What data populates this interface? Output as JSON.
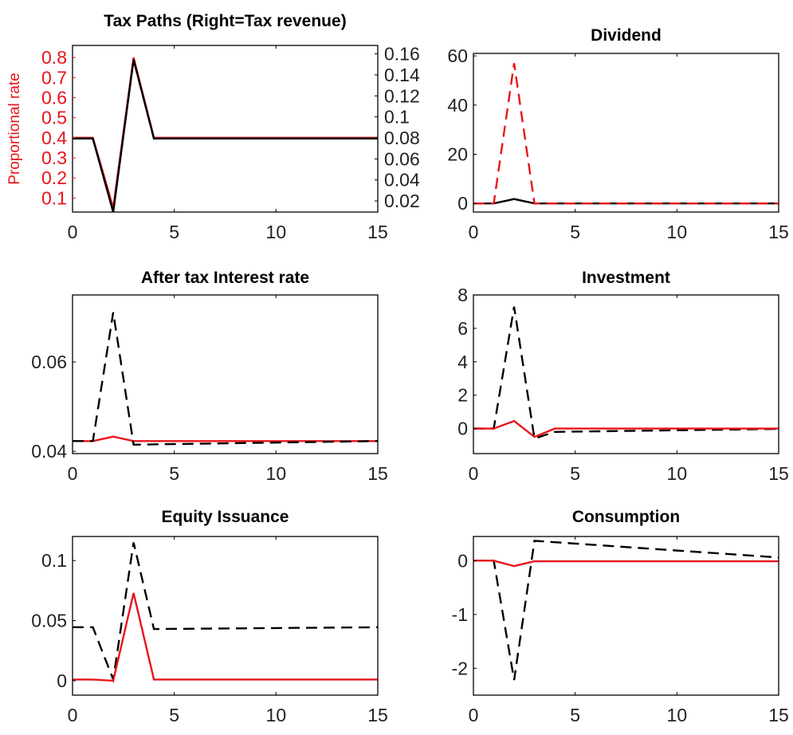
{
  "colors": {
    "red": "#e8141c",
    "black": "#000000",
    "axis": "#000000",
    "tick_text": "#222222"
  },
  "chart_data": [
    {
      "type": "line",
      "title": "Tax Paths (Right=Tax revenue)",
      "xlim": [
        0,
        15
      ],
      "xticks": [
        0,
        5,
        10,
        15
      ],
      "ylim": [
        0.03,
        0.86
      ],
      "yticks": [
        0.1,
        0.2,
        0.3,
        0.4,
        0.5,
        0.6,
        0.7,
        0.8
      ],
      "ytick_labels": [
        "0.1",
        "0.2",
        "0.3",
        "0.4",
        "0.5",
        "0.6",
        "0.7",
        "0.8"
      ],
      "ylabel": "Proportional rate",
      "ylabel_color": "#e8141c",
      "y_tick_color": "#e8141c",
      "y2lim": [
        0.0094,
        0.168
      ],
      "y2ticks": [
        0.02,
        0.04,
        0.06,
        0.08,
        0.1,
        0.12,
        0.14,
        0.16
      ],
      "y2tick_labels": [
        "0.02",
        "0.04",
        "0.06",
        "0.08",
        "0.1",
        "0.12",
        "0.14",
        "0.16"
      ],
      "grid": false,
      "series": [
        {
          "axis": "right",
          "style": "dashed",
          "color": "#000000",
          "x": [
            0,
            1,
            2,
            3,
            4,
            15
          ],
          "y": [
            0.0794,
            0.0794,
            0.0132,
            0.1546,
            0.0794,
            0.0794
          ]
        },
        {
          "axis": "left",
          "style": "solid",
          "color": "#e8141c",
          "x": [
            0,
            1,
            2,
            3,
            4,
            15
          ],
          "y": [
            0.4,
            0.4,
            0.05,
            0.8,
            0.4,
            0.4
          ]
        },
        {
          "axis": "right",
          "style": "solid",
          "color": "#000000",
          "x": [
            0,
            1,
            2,
            3,
            4,
            15
          ],
          "y": [
            0.0794,
            0.0794,
            0.0093,
            0.1546,
            0.0794,
            0.0794
          ]
        }
      ]
    },
    {
      "type": "line",
      "title": "Dividend",
      "xlim": [
        0,
        15
      ],
      "xticks": [
        0,
        5,
        10,
        15
      ],
      "ylim": [
        -3.5,
        61
      ],
      "yticks": [
        0,
        20,
        40,
        60
      ],
      "ytick_labels": [
        "0",
        "20",
        "40",
        "60"
      ],
      "grid": false,
      "series": [
        {
          "style": "solid",
          "color": "#000000",
          "x": [
            0,
            1,
            2,
            3,
            15
          ],
          "y": [
            0,
            0,
            1.8,
            0,
            0
          ]
        },
        {
          "style": "dashed",
          "color": "#e8141c",
          "x": [
            0,
            1,
            2,
            3,
            15
          ],
          "y": [
            0,
            0,
            57,
            0,
            0
          ]
        }
      ]
    },
    {
      "type": "line",
      "title": "After tax Interest rate",
      "xlim": [
        0,
        15
      ],
      "xticks": [
        0,
        5,
        10,
        15
      ],
      "ylim": [
        0.0395,
        0.075
      ],
      "yticks": [
        0.04,
        0.06
      ],
      "ytick_labels": [
        "0.04",
        "0.06"
      ],
      "grid": false,
      "series": [
        {
          "style": "solid",
          "color": "#e8141c",
          "x": [
            0,
            1,
            2,
            3,
            15
          ],
          "y": [
            0.0423,
            0.0423,
            0.0433,
            0.0423,
            0.0423
          ]
        },
        {
          "style": "dashed",
          "color": "#000000",
          "x": [
            0,
            1,
            2,
            3,
            15
          ],
          "y": [
            0.0423,
            0.0423,
            0.0711,
            0.0415,
            0.0423
          ]
        }
      ]
    },
    {
      "type": "line",
      "title": "Investment",
      "xlim": [
        0,
        15
      ],
      "xticks": [
        0,
        5,
        10,
        15
      ],
      "ylim": [
        -1.5,
        8
      ],
      "yticks": [
        0,
        2,
        4,
        6,
        8
      ],
      "ytick_labels": [
        "0",
        "2",
        "4",
        "6",
        "8"
      ],
      "grid": false,
      "series": [
        {
          "style": "dashed",
          "color": "#000000",
          "x": [
            0,
            1,
            2,
            3,
            4,
            15
          ],
          "y": [
            0,
            0,
            7.3,
            -0.6,
            -0.2,
            -0.02
          ]
        },
        {
          "style": "solid",
          "color": "#e8141c",
          "x": [
            0,
            1,
            2,
            3,
            4,
            15
          ],
          "y": [
            0,
            0,
            0.45,
            -0.5,
            0,
            0
          ]
        }
      ]
    },
    {
      "type": "line",
      "title": "Equity Issuance",
      "xlim": [
        0,
        15
      ],
      "xticks": [
        0,
        5,
        10,
        15
      ],
      "ylim": [
        -0.012,
        0.12
      ],
      "yticks": [
        0,
        0.05,
        0.1
      ],
      "ytick_labels": [
        "0",
        "0.05",
        "0.1"
      ],
      "grid": false,
      "series": [
        {
          "style": "dashed",
          "color": "#000000",
          "x": [
            0,
            1,
            2,
            3,
            4,
            15
          ],
          "y": [
            0.0445,
            0.0445,
            0.001,
            0.115,
            0.043,
            0.0445
          ]
        },
        {
          "style": "solid",
          "color": "#e8141c",
          "x": [
            0,
            1,
            2,
            3,
            4,
            15
          ],
          "y": [
            0.001,
            0.001,
            0,
            0.073,
            0.001,
            0.001
          ]
        }
      ]
    },
    {
      "type": "line",
      "title": "Consumption",
      "xlim": [
        0,
        15
      ],
      "xticks": [
        0,
        5,
        10,
        15
      ],
      "ylim": [
        -2.5,
        0.45
      ],
      "yticks": [
        -2,
        -1,
        0
      ],
      "ytick_labels": [
        "-2",
        "-1",
        "0"
      ],
      "grid": false,
      "series": [
        {
          "style": "dashed",
          "color": "#000000",
          "x": [
            0,
            1,
            2,
            3,
            15
          ],
          "y": [
            0,
            0,
            -2.22,
            0.37,
            0.06
          ]
        },
        {
          "style": "solid",
          "color": "#e8141c",
          "x": [
            0,
            1,
            2,
            3,
            15
          ],
          "y": [
            0,
            0,
            -0.1,
            -0.01,
            -0.01
          ]
        }
      ]
    }
  ]
}
